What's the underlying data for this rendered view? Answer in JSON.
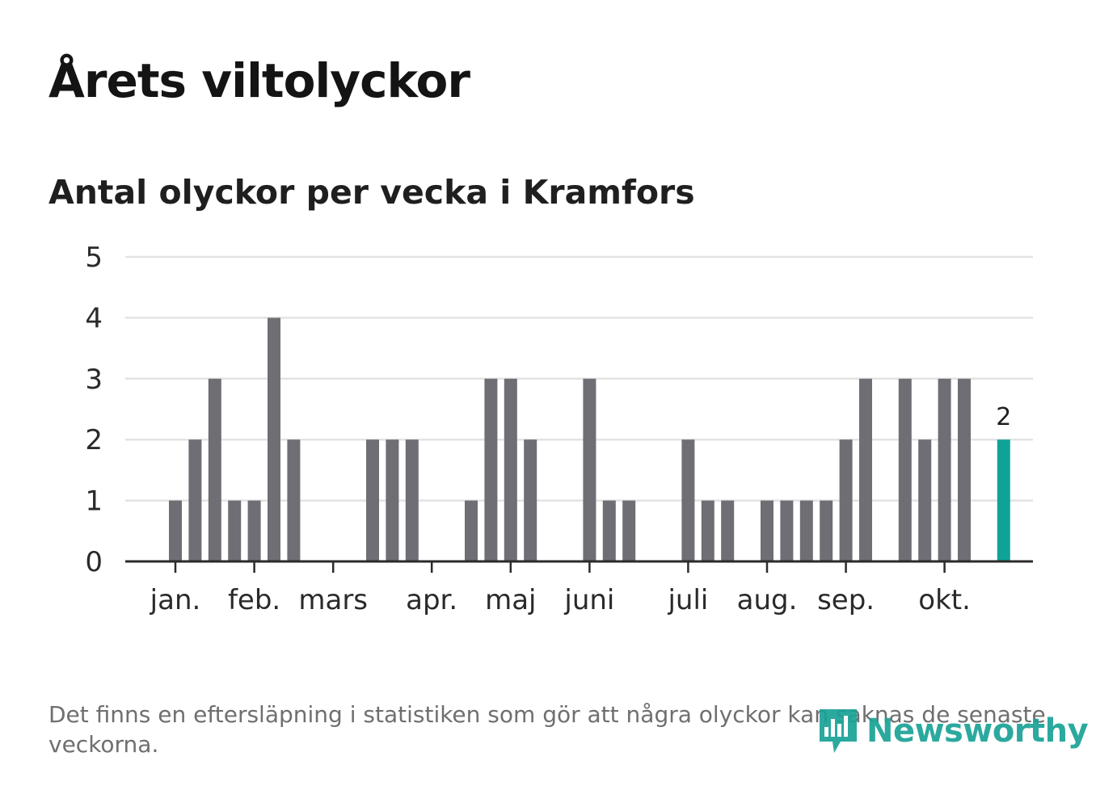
{
  "title": "Årets viltolyckor",
  "subtitle": "Antal olyckor per vecka i Kramfors",
  "footnote": "Det finns en eftersläpning i statistiken som gör att några olyckor kan saknas de senaste veckorna.",
  "logo": {
    "text": "Newsworthy",
    "icon": "newsworthy-bar-icon"
  },
  "colors": {
    "bar": "#6f6e74",
    "highlight": "#0fa397",
    "grid": "#e3e3e3",
    "axis": "#2b2b2b",
    "brand": "#1aa296"
  },
  "chart_data": {
    "type": "bar",
    "title": "Antal olyckor per vecka i Kramfors",
    "xlabel": "",
    "ylabel": "",
    "ylim": [
      0,
      5
    ],
    "yticks": [
      0,
      1,
      2,
      3,
      4,
      5
    ],
    "week_range": [
      1,
      42
    ],
    "month_ticks": [
      {
        "label": "jan.",
        "week": 1
      },
      {
        "label": "feb.",
        "week": 5
      },
      {
        "label": "mars",
        "week": 9
      },
      {
        "label": "apr.",
        "week": 14
      },
      {
        "label": "maj",
        "week": 18
      },
      {
        "label": "juni",
        "week": 22
      },
      {
        "label": "juli",
        "week": 27
      },
      {
        "label": "aug.",
        "week": 31
      },
      {
        "label": "sep.",
        "week": 35
      },
      {
        "label": "okt.",
        "week": 40
      }
    ],
    "series": [
      {
        "name": "Antal olyckor",
        "weeks": [
          1,
          2,
          3,
          4,
          5,
          6,
          7,
          8,
          9,
          10,
          11,
          12,
          13,
          14,
          15,
          16,
          17,
          18,
          19,
          20,
          21,
          22,
          23,
          24,
          25,
          26,
          27,
          28,
          29,
          30,
          31,
          32,
          33,
          34,
          35,
          36,
          37,
          38,
          39,
          40,
          41,
          42
        ],
        "values": [
          1,
          2,
          3,
          1,
          1,
          4,
          2,
          0,
          0,
          0,
          2,
          2,
          2,
          0,
          0,
          1,
          3,
          3,
          2,
          0,
          0,
          3,
          1,
          1,
          0,
          0,
          2,
          1,
          1,
          0,
          1,
          1,
          1,
          1,
          2,
          3,
          0,
          3,
          2,
          3,
          3,
          0
        ]
      }
    ],
    "highlight": {
      "week": 43,
      "value": 2,
      "label": "2"
    }
  }
}
